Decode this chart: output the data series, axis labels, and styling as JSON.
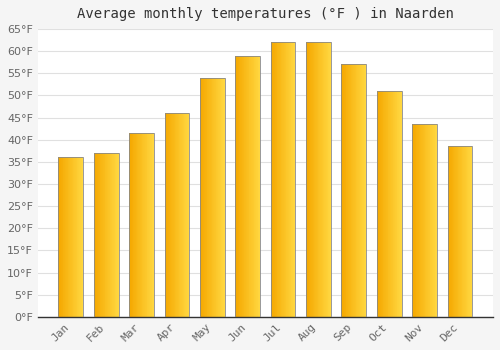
{
  "title": "Average monthly temperatures (°F ) in Naarden",
  "months": [
    "Jan",
    "Feb",
    "Mar",
    "Apr",
    "May",
    "Jun",
    "Jul",
    "Aug",
    "Sep",
    "Oct",
    "Nov",
    "Dec"
  ],
  "values": [
    36,
    37,
    41.5,
    46,
    54,
    59,
    62,
    62,
    57,
    51,
    43.5,
    38.5
  ],
  "ylim": [
    0,
    65
  ],
  "yticks": [
    0,
    5,
    10,
    15,
    20,
    25,
    30,
    35,
    40,
    45,
    50,
    55,
    60,
    65
  ],
  "background_color": "#F5F5F5",
  "plot_bg_color": "#FFFFFF",
  "grid_color": "#E0E0E0",
  "bar_left_color": "#F5A800",
  "bar_right_color": "#FFD740",
  "bar_edge_color": "#888888",
  "title_fontsize": 10,
  "tick_fontsize": 8,
  "tick_color": "#666666",
  "spine_color": "#333333"
}
